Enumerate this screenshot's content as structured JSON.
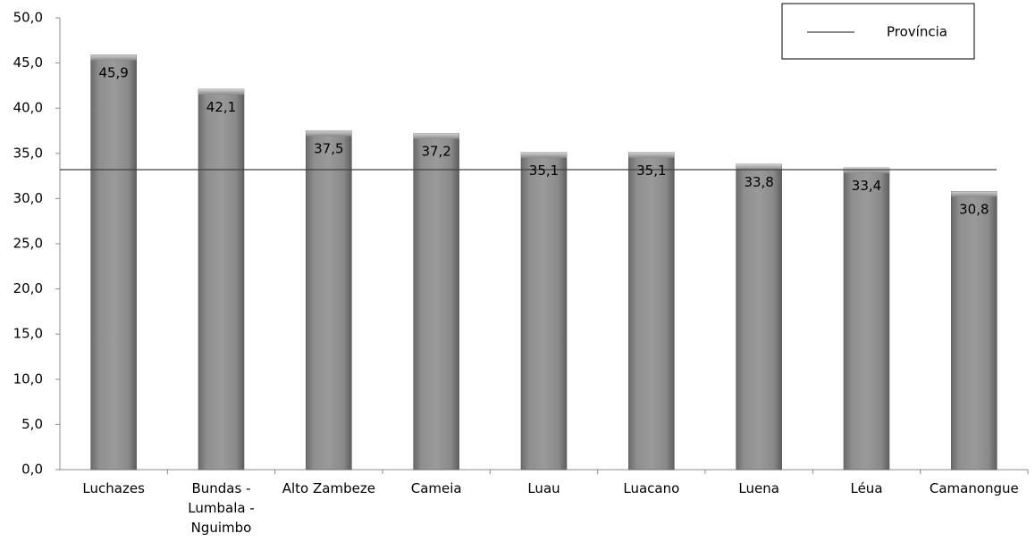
{
  "chart_data": {
    "type": "bar",
    "categories": [
      [
        "Luchazes"
      ],
      [
        "Bundas -",
        "Lumbala -",
        "Nguimbo"
      ],
      [
        "Alto Zambeze"
      ],
      [
        "Cameia"
      ],
      [
        "Luau"
      ],
      [
        "Luacano"
      ],
      [
        "Luena"
      ],
      [
        "Léua"
      ],
      [
        "Camanongue"
      ]
    ],
    "values": [
      45.9,
      42.1,
      37.5,
      37.2,
      35.1,
      35.1,
      33.8,
      33.4,
      30.8
    ],
    "value_labels": [
      "45,9",
      "42,1",
      "37,5",
      "37,2",
      "35,1",
      "35,1",
      "33,8",
      "33,4",
      "30,8"
    ],
    "ylim": [
      0,
      50
    ],
    "yticks": [
      0,
      5,
      10,
      15,
      20,
      25,
      30,
      35,
      40,
      45,
      50
    ],
    "ytick_labels": [
      "0,0",
      "5,0",
      "10,0",
      "15,0",
      "20,0",
      "25,0",
      "30,0",
      "35,0",
      "40,0",
      "45,0",
      "50,0"
    ],
    "reference_line": {
      "name": "Província",
      "value": 33.2
    },
    "legend": {
      "position": "top-right",
      "entries": [
        "Província"
      ]
    },
    "grid": false,
    "bar_color": "#8c8c8c",
    "title": "",
    "xlabel": "",
    "ylabel": ""
  }
}
